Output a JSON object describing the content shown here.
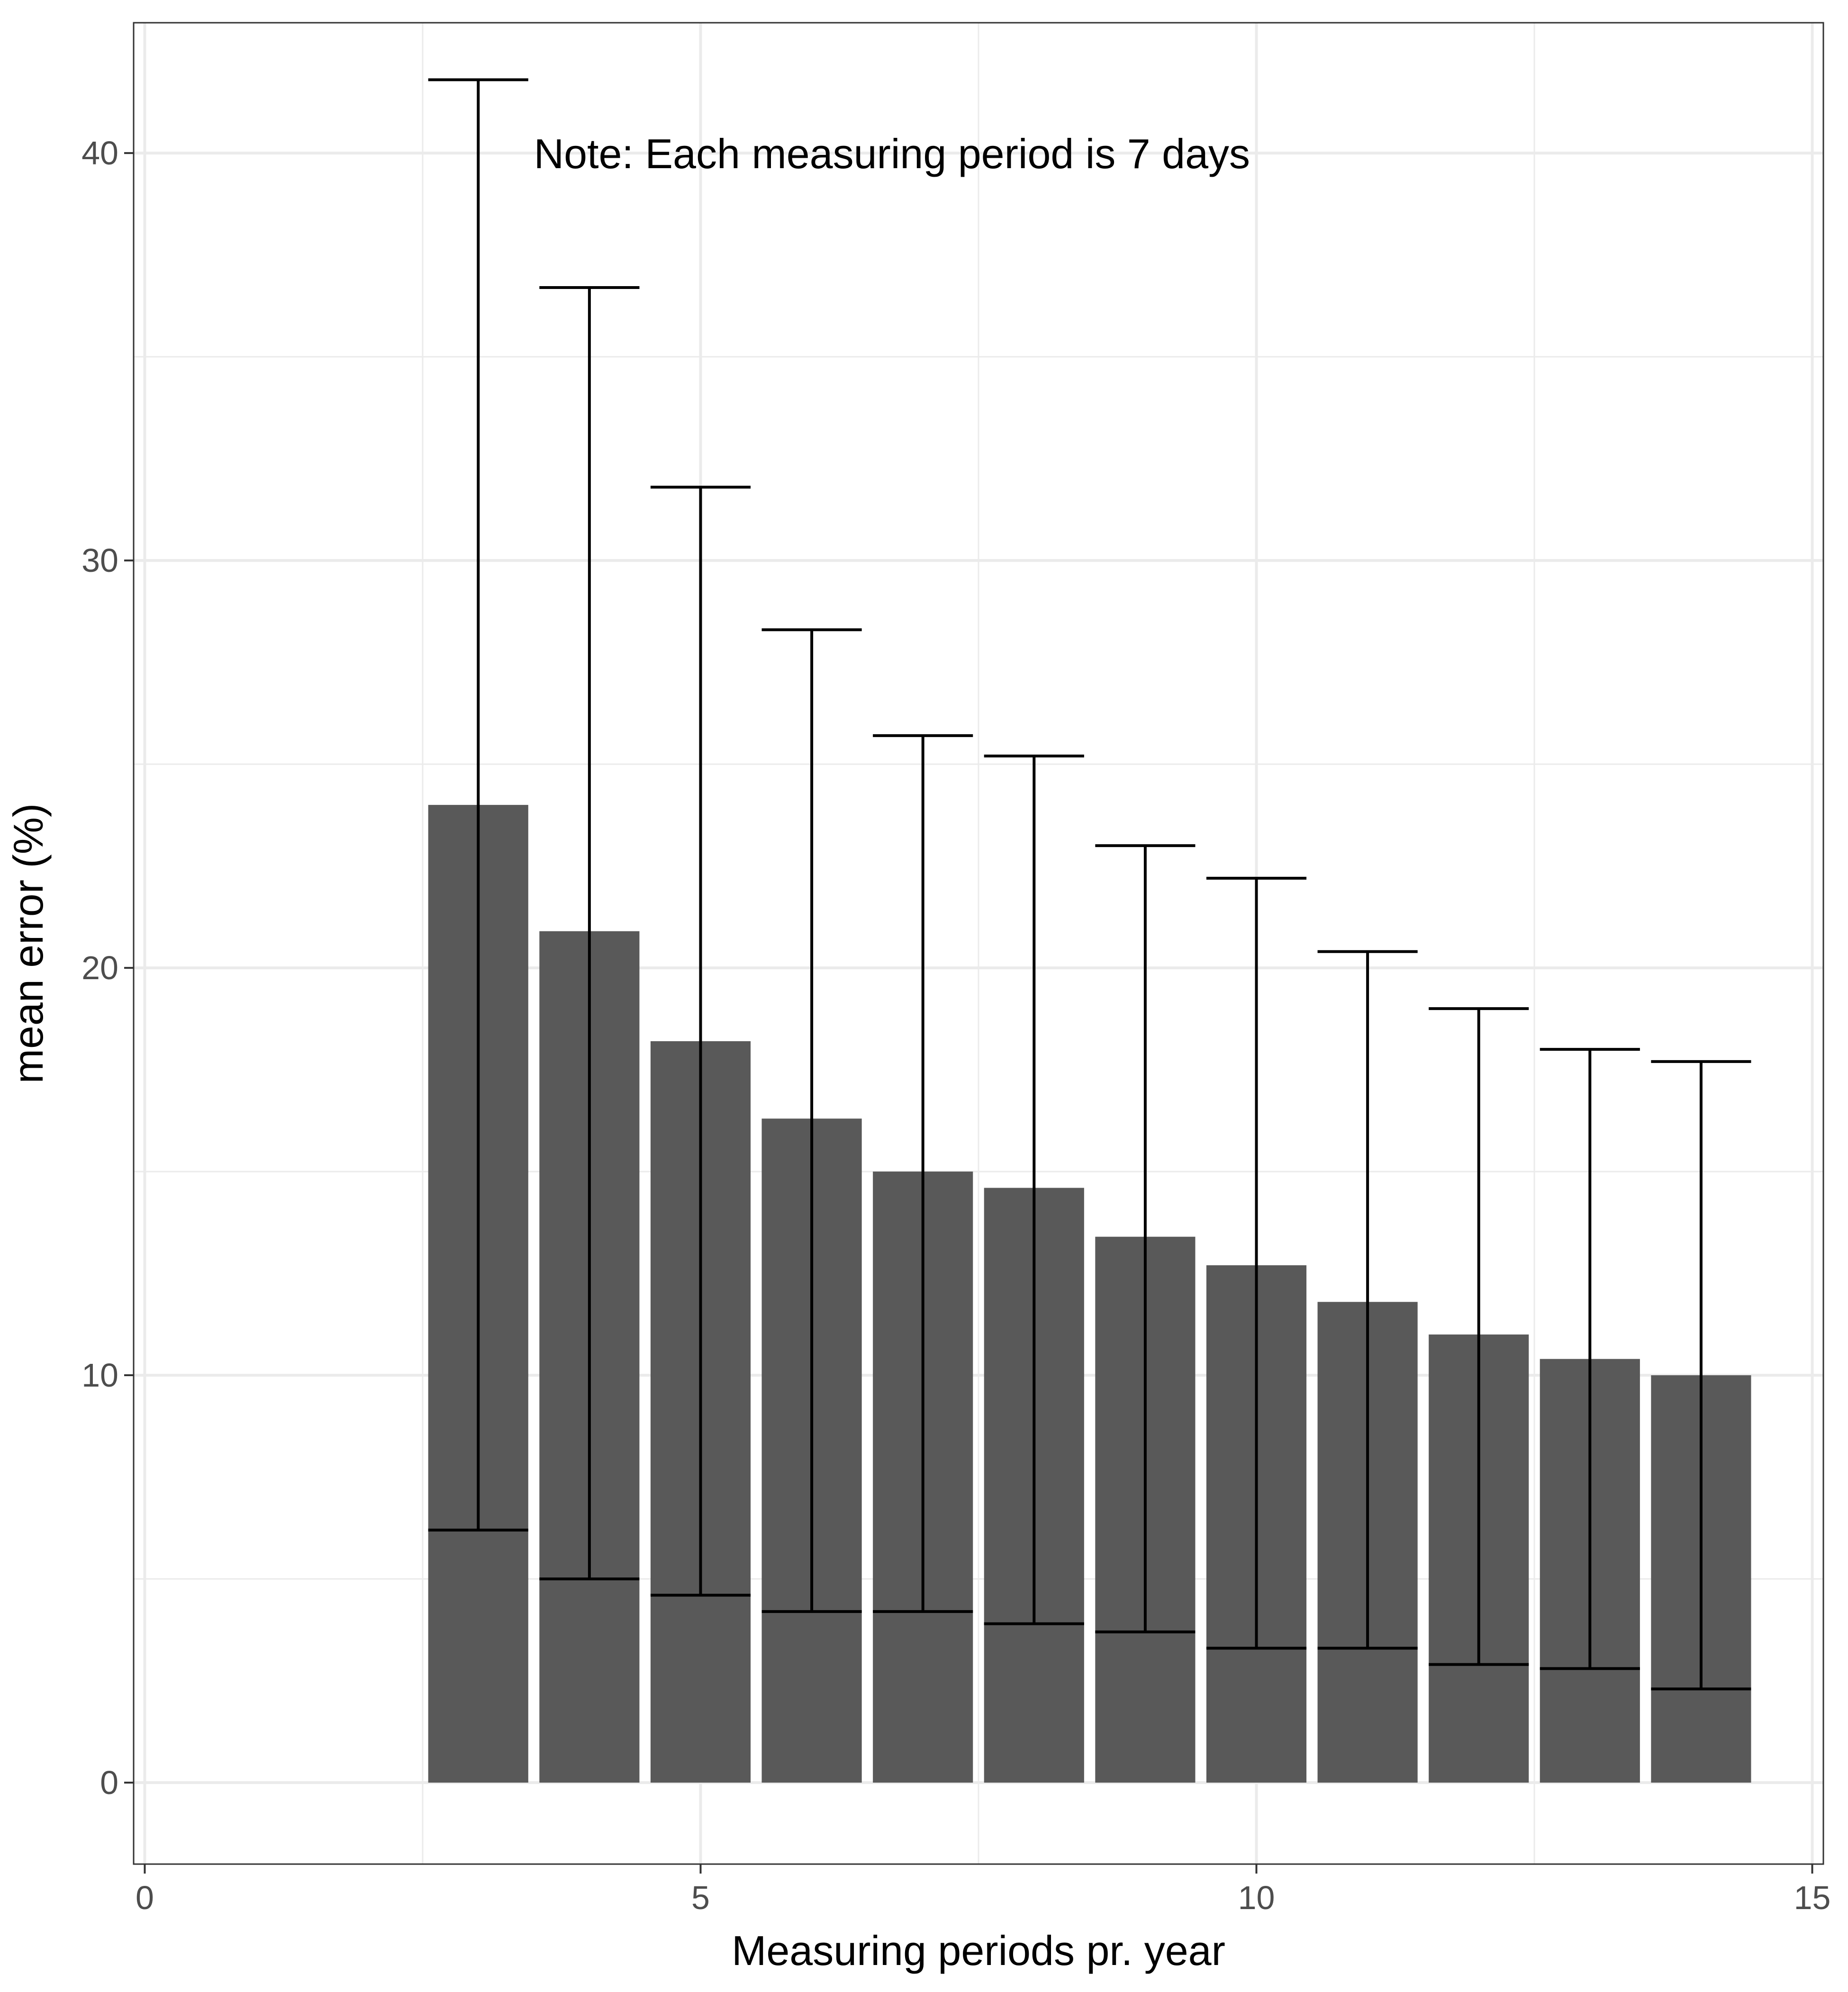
{
  "chart_data": {
    "type": "bar",
    "title": "",
    "xlabel": "Measuring periods pr. year",
    "ylabel": "mean error (%)",
    "annotation": "Note: Each measuring period is 7 days",
    "xlim": [
      -0.1,
      15.1
    ],
    "ylim": [
      -2.0,
      43.2
    ],
    "x_ticks": [
      0,
      5,
      10,
      15
    ],
    "y_ticks": [
      0,
      10,
      20,
      30,
      40
    ],
    "grid": true,
    "legend": "none",
    "bar_color": "#595959",
    "error_color": "#000000",
    "x": [
      3,
      4,
      5,
      6,
      7,
      8,
      9,
      10,
      11,
      12,
      13,
      14
    ],
    "values": [
      24.0,
      20.9,
      18.2,
      16.3,
      15.0,
      14.6,
      13.4,
      12.7,
      11.8,
      11.0,
      10.4,
      10.0
    ],
    "error_upper": [
      41.8,
      36.7,
      31.8,
      28.3,
      25.7,
      25.2,
      23.0,
      22.2,
      20.4,
      19.0,
      18.0,
      17.7
    ],
    "error_lower": [
      6.2,
      5.0,
      4.6,
      4.2,
      4.2,
      3.9,
      3.7,
      3.3,
      3.3,
      2.9,
      2.8,
      2.3
    ]
  }
}
